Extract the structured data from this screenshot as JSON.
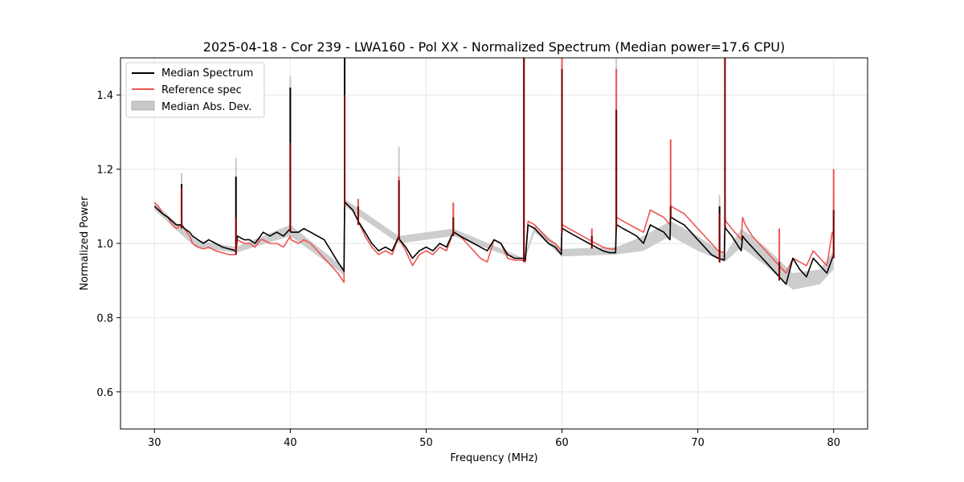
{
  "chart_data": {
    "type": "line",
    "title": "2025-04-18 - Cor 239 - LWA160 - Pol XX - Normalized Spectrum (Median power=17.6 CPU)",
    "xlabel": "Frequency (MHz)",
    "ylabel": "Normalized Power",
    "xlim": [
      27.5,
      82.5
    ],
    "ylim": [
      0.5,
      1.5
    ],
    "xticks": [
      30,
      40,
      50,
      60,
      70,
      80
    ],
    "yticks": [
      0.6,
      0.8,
      1.0,
      1.2,
      1.4
    ],
    "grid": true,
    "legend_position": "upper-left",
    "legend": [
      {
        "label": "Median Spectrum",
        "kind": "line",
        "color": "#000000"
      },
      {
        "label": "Reference spec",
        "kind": "line",
        "color": "#ee5555"
      },
      {
        "label": "Median Abs. Dev.",
        "kind": "patch",
        "color": "#c8c8c8"
      }
    ],
    "colors": {
      "median": "#000000",
      "reference": "#ee5555",
      "mad": "#c8c8c8",
      "grid": "#e6e6e6",
      "overlap": "#7a0000"
    },
    "series": [
      {
        "name": "Median Spectrum",
        "x": [
          30.0,
          30.3,
          30.6,
          31.0,
          31.3,
          31.6,
          32.0,
          32.2,
          32.6,
          32.8,
          33.2,
          33.6,
          34.0,
          34.5,
          35.0,
          35.5,
          36.0,
          36.1,
          36.6,
          37.0,
          37.4,
          37.8,
          38.0,
          38.5,
          39.0,
          39.5,
          40.0,
          40.05,
          40.6,
          41.0,
          41.5,
          42.0,
          42.5,
          43.0,
          43.5,
          43.95,
          44.0,
          44.05,
          44.6,
          45.0,
          45.5,
          46.0,
          46.5,
          47.0,
          47.5,
          48.0,
          48.05,
          48.5,
          49.0,
          49.5,
          50.0,
          50.5,
          51.0,
          51.5,
          52.0,
          52.05,
          52.5,
          53.0,
          53.5,
          54.0,
          54.5,
          55.0,
          55.5,
          56.0,
          56.5,
          57.2,
          57.3,
          57.5,
          58.0,
          58.5,
          59.0,
          59.5,
          59.95,
          60.0,
          60.05,
          60.5,
          61.0,
          61.5,
          62.0,
          62.5,
          63.0,
          63.5,
          63.95,
          64.0,
          64.05,
          64.5,
          65.0,
          65.5,
          66.0,
          66.5,
          67.0,
          67.5,
          67.95,
          68.0,
          68.05,
          68.5,
          69.0,
          69.5,
          70.0,
          70.5,
          71.0,
          71.5,
          71.95,
          72.0,
          72.05,
          72.5,
          73.2,
          73.3,
          73.5,
          74.0,
          74.5,
          75.0,
          75.5,
          76.0,
          76.5,
          77.0,
          77.5,
          78.0,
          78.5,
          79.0,
          79.5,
          79.9,
          80.0
        ],
        "y": [
          1.1,
          1.09,
          1.08,
          1.07,
          1.06,
          1.05,
          1.05,
          1.04,
          1.03,
          1.02,
          1.01,
          1.0,
          1.01,
          1.0,
          0.99,
          0.985,
          0.98,
          1.02,
          1.01,
          1.01,
          1.0,
          1.02,
          1.03,
          1.02,
          1.03,
          1.02,
          1.04,
          1.03,
          1.03,
          1.04,
          1.03,
          1.02,
          1.01,
          0.98,
          0.95,
          0.925,
          1.11,
          1.11,
          1.09,
          1.06,
          1.03,
          1.0,
          0.98,
          0.99,
          0.98,
          1.02,
          1.01,
          0.99,
          0.96,
          0.98,
          0.99,
          0.98,
          1.0,
          0.99,
          1.03,
          1.03,
          1.02,
          1.01,
          1.0,
          0.99,
          0.98,
          1.01,
          1.0,
          0.97,
          0.96,
          0.96,
          0.955,
          1.05,
          1.04,
          1.02,
          1.0,
          0.99,
          0.97,
          1.04,
          1.04,
          1.03,
          1.02,
          1.01,
          1.0,
          0.99,
          0.98,
          0.975,
          0.975,
          1.05,
          1.05,
          1.04,
          1.03,
          1.02,
          1.0,
          1.05,
          1.04,
          1.03,
          1.01,
          1.08,
          1.07,
          1.06,
          1.05,
          1.03,
          1.01,
          0.99,
          0.97,
          0.96,
          0.955,
          1.05,
          1.04,
          1.02,
          0.98,
          1.02,
          1.01,
          0.99,
          0.97,
          0.95,
          0.93,
          0.91,
          0.89,
          0.96,
          0.93,
          0.91,
          0.96,
          0.94,
          0.92,
          0.96,
          0.97
        ]
      },
      {
        "name": "Reference spec",
        "x": [
          30.0,
          30.3,
          30.6,
          31.0,
          31.3,
          31.6,
          32.0,
          32.2,
          32.6,
          32.8,
          33.2,
          33.6,
          34.0,
          34.5,
          35.0,
          35.5,
          36.0,
          36.1,
          36.6,
          37.0,
          37.4,
          37.8,
          38.0,
          38.5,
          39.0,
          39.5,
          40.0,
          40.05,
          40.6,
          41.0,
          41.5,
          42.0,
          42.5,
          43.0,
          43.5,
          43.95,
          44.0,
          44.05,
          44.6,
          45.0,
          45.5,
          46.0,
          46.5,
          47.0,
          47.5,
          48.0,
          48.05,
          48.5,
          49.0,
          49.5,
          50.0,
          50.5,
          51.0,
          51.5,
          52.0,
          52.05,
          52.5,
          53.0,
          53.5,
          54.0,
          54.5,
          55.0,
          55.5,
          56.0,
          56.5,
          57.2,
          57.3,
          57.5,
          58.0,
          58.5,
          59.0,
          59.5,
          59.95,
          60.0,
          60.05,
          60.5,
          61.0,
          61.5,
          62.0,
          62.5,
          63.0,
          63.5,
          63.95,
          64.0,
          64.05,
          64.5,
          65.0,
          65.5,
          66.0,
          66.5,
          67.0,
          67.5,
          67.95,
          68.0,
          68.05,
          68.5,
          69.0,
          69.5,
          70.0,
          70.5,
          71.0,
          71.5,
          71.95,
          72.0,
          72.05,
          72.5,
          73.2,
          73.3,
          73.5,
          74.0,
          74.5,
          75.0,
          75.5,
          76.0,
          76.5,
          77.0,
          77.5,
          78.0,
          78.5,
          79.0,
          79.5,
          79.9,
          80.0
        ],
        "y": [
          1.11,
          1.1,
          1.08,
          1.07,
          1.05,
          1.04,
          1.05,
          1.04,
          1.02,
          1.0,
          0.99,
          0.985,
          0.99,
          0.98,
          0.975,
          0.97,
          0.97,
          1.01,
          1.0,
          1.0,
          0.99,
          1.01,
          1.01,
          1.0,
          1.0,
          0.99,
          1.02,
          1.01,
          1.0,
          1.01,
          1.0,
          0.98,
          0.96,
          0.94,
          0.92,
          0.895,
          1.11,
          1.11,
          1.09,
          1.06,
          1.02,
          0.99,
          0.97,
          0.98,
          0.97,
          1.02,
          1.01,
          0.98,
          0.94,
          0.97,
          0.98,
          0.97,
          0.99,
          0.98,
          1.03,
          1.03,
          1.02,
          1.0,
          0.98,
          0.96,
          0.95,
          1.01,
          1.0,
          0.96,
          0.955,
          0.955,
          0.95,
          1.06,
          1.05,
          1.03,
          1.01,
          1.0,
          0.98,
          1.05,
          1.05,
          1.04,
          1.03,
          1.02,
          1.01,
          1.0,
          0.99,
          0.985,
          0.985,
          1.07,
          1.07,
          1.06,
          1.05,
          1.04,
          1.03,
          1.09,
          1.08,
          1.07,
          1.05,
          1.11,
          1.1,
          1.09,
          1.08,
          1.06,
          1.04,
          1.02,
          1.0,
          0.98,
          0.975,
          1.07,
          1.06,
          1.04,
          1.01,
          1.07,
          1.05,
          1.02,
          1.0,
          0.98,
          0.96,
          0.94,
          0.92,
          0.96,
          0.95,
          0.94,
          0.98,
          0.96,
          0.94,
          1.03,
          1.02
        ]
      }
    ],
    "mad_band": {
      "name": "Median Abs. Dev.",
      "x": [
        30.0,
        33.0,
        36.0,
        40.0,
        43.95,
        44.0,
        48.0,
        52.0,
        57.2,
        58.0,
        60.0,
        64.0,
        66.0,
        68.0,
        70.0,
        72.0,
        73.2,
        75.0,
        77.0,
        79.0,
        80.0
      ],
      "lower": [
        1.09,
        0.99,
        0.975,
        1.02,
        0.915,
        1.1,
        1.0,
        1.02,
        0.95,
        1.03,
        0.965,
        0.97,
        0.98,
        1.02,
        0.98,
        0.95,
        0.99,
        0.94,
        0.875,
        0.89,
        0.93
      ],
      "upper": [
        1.11,
        1.01,
        0.99,
        1.05,
        0.935,
        1.12,
        1.02,
        1.04,
        0.96,
        1.05,
        0.985,
        0.99,
        1.02,
        1.06,
        1.02,
        0.97,
        1.04,
        0.99,
        0.92,
        0.93,
        0.98
      ]
    },
    "spikes": [
      {
        "x": 32.0,
        "median_top": 1.16,
        "ref_top": 1.15,
        "mad_top": 1.19
      },
      {
        "x": 36.0,
        "median_top": 1.18,
        "ref_top": 1.07,
        "mad_top": 1.23
      },
      {
        "x": 40.0,
        "median_top": 1.42,
        "ref_top": 1.27,
        "mad_top": 1.45
      },
      {
        "x": 44.0,
        "median_top": 1.5,
        "ref_top": 1.4,
        "mad_top": 1.5
      },
      {
        "x": 45.0,
        "median_top": 1.1,
        "ref_top": 1.12,
        "mad_top": 1.12
      },
      {
        "x": 48.0,
        "median_top": 1.17,
        "ref_top": 1.18,
        "mad_top": 1.26
      },
      {
        "x": 52.0,
        "median_top": 1.07,
        "ref_top": 1.11,
        "mad_top": 1.1
      },
      {
        "x": 57.2,
        "median_top": 1.5,
        "ref_top": 1.5,
        "mad_top": 1.5
      },
      {
        "x": 60.0,
        "median_top": 1.47,
        "ref_top": 1.5,
        "mad_top": 1.5
      },
      {
        "x": 62.2,
        "median_top": 1.02,
        "ref_top": 1.04,
        "mad_top": 1.04
      },
      {
        "x": 64.0,
        "median_top": 1.36,
        "ref_top": 1.47,
        "mad_top": 1.5
      },
      {
        "x": 68.0,
        "median_top": 1.1,
        "ref_top": 1.28,
        "mad_top": 1.15
      },
      {
        "x": 71.6,
        "median_top": 1.1,
        "ref_top": 1.08,
        "mad_top": 1.13
      },
      {
        "x": 72.0,
        "median_top": 1.5,
        "ref_top": 1.5,
        "mad_top": 1.5
      },
      {
        "x": 76.0,
        "median_top": 0.95,
        "ref_top": 1.04,
        "mad_top": 0.97
      },
      {
        "x": 80.0,
        "median_top": 1.09,
        "ref_top": 1.2,
        "mad_top": 1.12
      }
    ]
  }
}
